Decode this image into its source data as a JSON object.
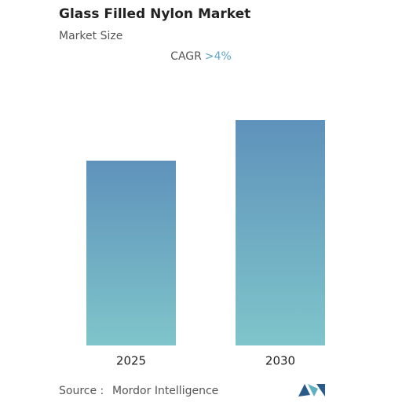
{
  "chart_data": {
    "type": "bar",
    "title": "Glass Filled Nylon Market",
    "subtitle": "Market Size",
    "cagr_label": "CAGR",
    "cagr_value": ">4%",
    "categories": [
      "2025",
      "2030"
    ],
    "values": [
      0.82,
      1
    ],
    "colors": [
      "#5f92bb",
      "#7fc5ca"
    ],
    "source_label": "Source :",
    "source": "Mordor Intelligence"
  }
}
